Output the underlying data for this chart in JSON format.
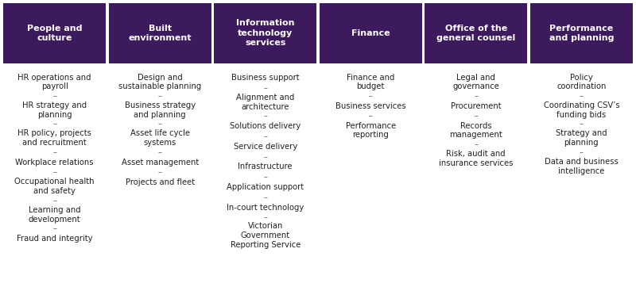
{
  "columns": [
    {
      "header": "People and\nculture",
      "items": [
        "HR operations and\npayroll",
        "–",
        "HR strategy and\nplanning",
        "–",
        "HR policy, projects\nand recruitment",
        "–",
        "Workplace relations",
        "–",
        "Occupational health\nand safety",
        "–",
        "Learning and\ndevelopment",
        "–",
        "Fraud and integrity"
      ]
    },
    {
      "header": "Built\nenvironment",
      "items": [
        "Design and\nsustainable planning",
        "–",
        "Business strategy\nand planning",
        "–",
        "Asset life cycle\nsystems",
        "–",
        "Asset management",
        "–",
        "Projects and fleet"
      ]
    },
    {
      "header": "Information\ntechnology\nservices",
      "items": [
        "Business support",
        "–",
        "Alignment and\narchitecture",
        "–",
        "Solutions delivery",
        "–",
        "Service delivery",
        "–",
        "Infrastructure",
        "–",
        "Application support",
        "–",
        "In-court technology",
        "–",
        "Victorian\nGovernment\nReporting Service"
      ]
    },
    {
      "header": "Finance",
      "items": [
        "Finance and\nbudget",
        "–",
        "Business services",
        "–",
        "Performance\nreporting"
      ]
    },
    {
      "header": "Office of the\ngeneral counsel",
      "items": [
        "Legal and\ngovernance",
        "–",
        "Procurement",
        "–",
        "Records\nmanagement",
        "–",
        "Risk, audit and\ninsurance services"
      ]
    },
    {
      "header": "Performance\nand planning",
      "items": [
        "Policy\ncoordination",
        "–",
        "Coordinating CSV’s\nfunding bids",
        "–",
        "Strategy and\nplanning",
        "–",
        "Data and business\nintelligence"
      ]
    }
  ],
  "header_bg_color": "#3d1a5e",
  "header_text_color": "#FFFFFF",
  "body_bg_color": "#FFFFFF",
  "body_text_color": "#222222",
  "separator_color": "#666666",
  "header_fontsize": 8.0,
  "body_fontsize": 7.2,
  "separator_fontsize": 7.0,
  "fig_width": 8.0,
  "fig_height": 3.62
}
